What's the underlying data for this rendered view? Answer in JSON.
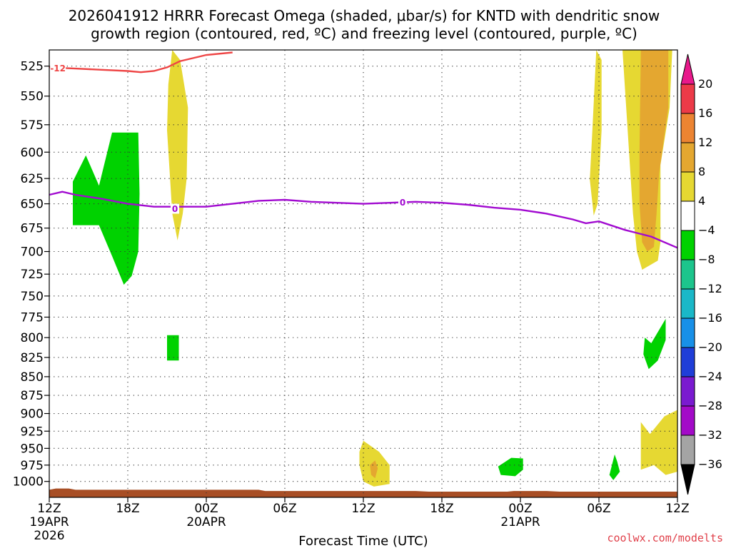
{
  "chart_data": {
    "type": "time-height contour",
    "title_line1": "2026041912 HRRR Forecast Omega (shaded, μbar/s) for KNTD with dendritic snow",
    "title_line2": "growth region (contoured, red, ºC) and freezing level (contoured, purple, ºC)",
    "xlabel": "Forecast Time (UTC)",
    "credit": "coolwx.com/modelts",
    "x_range_hours": [
      0,
      48
    ],
    "y_range_hPa": [
      1025,
      512
    ],
    "y_ticks": [
      525,
      550,
      575,
      600,
      625,
      650,
      675,
      700,
      725,
      750,
      775,
      800,
      825,
      850,
      875,
      900,
      925,
      950,
      975,
      1000
    ],
    "x_ticks": [
      {
        "h": 0,
        "l1": "12Z",
        "l2": "19APR",
        "l3": "2026"
      },
      {
        "h": 6,
        "l1": "18Z",
        "l2": "",
        "l3": ""
      },
      {
        "h": 12,
        "l1": "00Z",
        "l2": "20APR",
        "l3": ""
      },
      {
        "h": 18,
        "l1": "06Z",
        "l2": "",
        "l3": ""
      },
      {
        "h": 24,
        "l1": "12Z",
        "l2": "",
        "l3": ""
      },
      {
        "h": 30,
        "l1": "18Z",
        "l2": "",
        "l3": ""
      },
      {
        "h": 36,
        "l1": "00Z",
        "l2": "21APR",
        "l3": ""
      },
      {
        "h": 42,
        "l1": "06Z",
        "l2": "",
        "l3": ""
      },
      {
        "h": 48,
        "l1": "12Z",
        "l2": "",
        "l3": ""
      }
    ],
    "colorbar": {
      "levels": [
        "20",
        "16",
        "12",
        "8",
        "4",
        "−4",
        "−8",
        "−12",
        "−16",
        "−20",
        "−24",
        "−28",
        "−32",
        "−36"
      ],
      "colors": [
        "#ec3a48",
        "#ec8432",
        "#e4a730",
        "#e6d832",
        "#ffffff",
        "#00d200",
        "#1cc58c",
        "#1ab8c8",
        "#1890e8",
        "#1f3ed8",
        "#7a1ad0",
        "#a30ac8",
        "#a4a4a4"
      ],
      "top_cap_color": "#e8198b",
      "bottom_cap_color": "#000000"
    },
    "contours": {
      "dendritic_label": "-12",
      "dendritic_color": "#ee4444",
      "dendritic_points": [
        [
          0,
          526
        ],
        [
          2,
          527
        ],
        [
          4,
          528
        ],
        [
          6,
          529
        ],
        [
          7,
          530
        ],
        [
          8,
          529
        ],
        [
          9,
          526
        ],
        [
          10,
          521
        ],
        [
          12,
          516
        ],
        [
          14,
          514
        ]
      ],
      "freezing_label": "0",
      "freezing_color": "#a10ad0",
      "freezing_points": [
        [
          0,
          641
        ],
        [
          1,
          638
        ],
        [
          2,
          641
        ],
        [
          4,
          645
        ],
        [
          6,
          650
        ],
        [
          8,
          653
        ],
        [
          10,
          653
        ],
        [
          12,
          653
        ],
        [
          14,
          650
        ],
        [
          16,
          647
        ],
        [
          18,
          646
        ],
        [
          20,
          648
        ],
        [
          22,
          649
        ],
        [
          24,
          650
        ],
        [
          26,
          649
        ],
        [
          28,
          648
        ],
        [
          30,
          649
        ],
        [
          32,
          651
        ],
        [
          34,
          654
        ],
        [
          36,
          656
        ],
        [
          38,
          660
        ],
        [
          40,
          666
        ],
        [
          41,
          670
        ],
        [
          42,
          668
        ],
        [
          44,
          677
        ],
        [
          46,
          684
        ],
        [
          48,
          696
        ]
      ]
    },
    "omega_regions": [
      {
        "value": "-4 to -8",
        "color": "#00d200",
        "points": [
          [
            1.8,
            672
          ],
          [
            1.8,
            628
          ],
          [
            2.8,
            603
          ],
          [
            3.8,
            632
          ],
          [
            4.8,
            582
          ],
          [
            6.8,
            582
          ],
          [
            6.9,
            640
          ],
          [
            6.8,
            700
          ],
          [
            6.3,
            727
          ],
          [
            5.7,
            737
          ],
          [
            4.8,
            705
          ],
          [
            3.8,
            672
          ]
        ]
      },
      {
        "value": "-4 to -8",
        "color": "#00d200",
        "points": [
          [
            9,
            797
          ],
          [
            9.9,
            797
          ],
          [
            9.9,
            829
          ],
          [
            9,
            829
          ]
        ]
      },
      {
        "value": "-4 to -8",
        "color": "#00d200",
        "points": [
          [
            46,
            807
          ],
          [
            47.1,
            777
          ],
          [
            47.1,
            803
          ],
          [
            46.5,
            829
          ],
          [
            45.8,
            840
          ],
          [
            45.4,
            821
          ],
          [
            45.5,
            800
          ]
        ]
      },
      {
        "value": "-4 to -8",
        "color": "#00d200",
        "points": [
          [
            34.3,
            977
          ],
          [
            35.3,
            964
          ],
          [
            36.2,
            965
          ],
          [
            36.2,
            982
          ],
          [
            35.6,
            992
          ],
          [
            34.5,
            990
          ]
        ]
      },
      {
        "value": "-4 to -8",
        "color": "#00d200",
        "points": [
          [
            42.8,
            990
          ],
          [
            43.2,
            959
          ],
          [
            43.4,
            970
          ],
          [
            43.6,
            985
          ],
          [
            43.1,
            998
          ]
        ]
      },
      {
        "value": "4 to 8",
        "color": "#e6d832",
        "points": [
          [
            9,
            580
          ],
          [
            9.1,
            540
          ],
          [
            9.4,
            512
          ],
          [
            10,
            520
          ],
          [
            10.6,
            560
          ],
          [
            10.5,
            625
          ],
          [
            10.2,
            660
          ],
          [
            9.8,
            688
          ],
          [
            9.4,
            660
          ]
        ]
      },
      {
        "value": "4 to 8",
        "color": "#e6d832",
        "points": [
          [
            41.3,
            626
          ],
          [
            41.5,
            580
          ],
          [
            41.8,
            512
          ],
          [
            42.2,
            520
          ],
          [
            42.2,
            580
          ],
          [
            41.9,
            650
          ],
          [
            41.6,
            662
          ]
        ]
      },
      {
        "value": "4 to 8",
        "color": "#e6d832",
        "points": [
          [
            43.8,
            512
          ],
          [
            47.6,
            512
          ],
          [
            47.4,
            560
          ],
          [
            46.7,
            612
          ],
          [
            46.7,
            690
          ],
          [
            46.5,
            710
          ],
          [
            45.3,
            720
          ],
          [
            44.9,
            700
          ],
          [
            44.6,
            660
          ],
          [
            44.3,
            600
          ]
        ]
      },
      {
        "value": "4 to 8",
        "color": "#e6d832",
        "points": [
          [
            45.2,
            912
          ],
          [
            45.9,
            929
          ],
          [
            47,
            904
          ],
          [
            48,
            895
          ],
          [
            48,
            985
          ],
          [
            47.1,
            990
          ],
          [
            46.2,
            975
          ],
          [
            45.2,
            982
          ]
        ]
      },
      {
        "value": "4 to 8",
        "color": "#e6d832",
        "points": [
          [
            23.7,
            955
          ],
          [
            24,
            939
          ],
          [
            25.2,
            955
          ],
          [
            26,
            975
          ],
          [
            26,
            1004
          ],
          [
            24.8,
            1008
          ],
          [
            24,
            1000
          ],
          [
            23.7,
            975
          ]
        ]
      },
      {
        "value": "8 to 12",
        "color": "#e4a730",
        "points": [
          [
            45.2,
            512
          ],
          [
            47.3,
            512
          ],
          [
            47.3,
            560
          ],
          [
            46.6,
            620
          ],
          [
            46.4,
            660
          ],
          [
            46.2,
            695
          ],
          [
            45.7,
            700
          ],
          [
            45.3,
            690
          ],
          [
            45.1,
            650
          ],
          [
            45.1,
            600
          ]
        ]
      },
      {
        "value": "8 to 12",
        "color": "#e4a730",
        "points": [
          [
            24.5,
            975
          ],
          [
            24.9,
            968
          ],
          [
            25.1,
            980
          ],
          [
            24.9,
            995
          ],
          [
            24.6,
            990
          ]
        ]
      }
    ],
    "terrain_color": "#a84e25",
    "terrain_points": [
      [
        0,
        1013
      ],
      [
        0.5,
        1011
      ],
      [
        1.5,
        1011
      ],
      [
        2,
        1013
      ],
      [
        10,
        1013
      ],
      [
        16,
        1013
      ],
      [
        16.5,
        1015
      ],
      [
        28,
        1015
      ],
      [
        29,
        1016
      ],
      [
        35,
        1016
      ],
      [
        35.5,
        1015
      ],
      [
        38,
        1015
      ],
      [
        39,
        1016
      ],
      [
        48,
        1016
      ]
    ]
  }
}
